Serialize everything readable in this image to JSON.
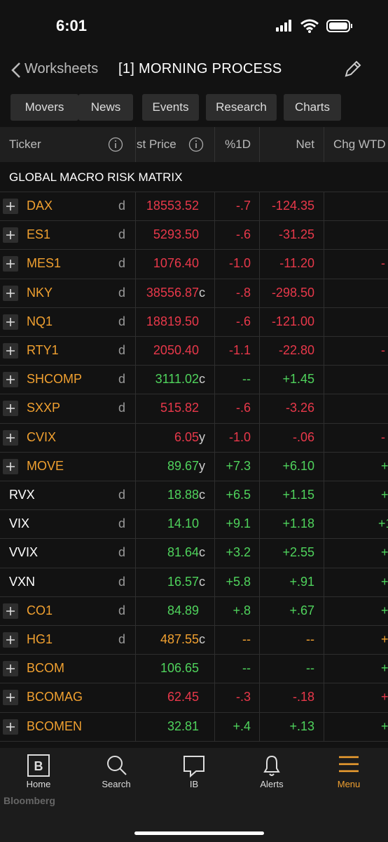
{
  "status_bar": {
    "time": "6:01"
  },
  "header": {
    "back": "Worksheets",
    "title": "[1] MORNING PROCESS"
  },
  "tabs": [
    "Movers",
    "News",
    "Events",
    "Research",
    "Charts"
  ],
  "table": {
    "columns": [
      "Ticker",
      "st Price",
      "%1D",
      "Net",
      "Chg WTD"
    ],
    "section": "GLOBAL MACRO RISK MATRIX",
    "rows": [
      {
        "expand": true,
        "ticker": "DAX",
        "flag": "d",
        "price": "18553.52",
        "suffix": null,
        "pct": "-.7",
        "net": "-124.35",
        "wtd": null,
        "color": "#e8384a"
      },
      {
        "expand": true,
        "ticker": "ES1",
        "flag": "d",
        "price": "5293.50",
        "suffix": null,
        "pct": "-.6",
        "net": "-31.25",
        "wtd": null,
        "color": "#e8384a"
      },
      {
        "expand": true,
        "ticker": "MES1",
        "flag": "d",
        "price": "1076.40",
        "suffix": null,
        "pct": "-1.0",
        "net": "-11.20",
        "wtd": "-",
        "color": "#e8384a"
      },
      {
        "expand": true,
        "ticker": "NKY",
        "flag": "d",
        "price": "38556.87",
        "suffix": "c",
        "pct": "-.8",
        "net": "-298.50",
        "wtd": null,
        "color": "#e8384a"
      },
      {
        "expand": true,
        "ticker": "NQ1",
        "flag": "d",
        "price": "18819.50",
        "suffix": null,
        "pct": "-.6",
        "net": "-121.00",
        "wtd": null,
        "color": "#e8384a"
      },
      {
        "expand": true,
        "ticker": "RTY1",
        "flag": "d",
        "price": "2050.40",
        "suffix": null,
        "pct": "-1.1",
        "net": "-22.80",
        "wtd": "-",
        "color": "#e8384a"
      },
      {
        "expand": true,
        "ticker": "SHCOMP",
        "flag": "d",
        "price": "3111.02",
        "suffix": "c",
        "pct": "--",
        "net": "+1.45",
        "wtd": null,
        "color": "#4fd35c"
      },
      {
        "expand": true,
        "ticker": "SXXP",
        "flag": "d",
        "price": "515.82",
        "suffix": null,
        "pct": "-.6",
        "net": "-3.26",
        "wtd": null,
        "color": "#e8384a"
      },
      {
        "expand": true,
        "ticker": "CVIX",
        "flag": null,
        "price": "6.05",
        "suffix": "y",
        "pct": "-1.0",
        "net": "-.06",
        "wtd": "-",
        "color": "#e8384a"
      },
      {
        "expand": true,
        "ticker": "MOVE",
        "flag": null,
        "price": "89.67",
        "suffix": "y",
        "pct": "+7.3",
        "net": "+6.10",
        "wtd": "+",
        "color": "#4fd35c"
      },
      {
        "expand": false,
        "ticker": "RVX",
        "flag": "d",
        "price": "18.88",
        "suffix": "c",
        "pct": "+6.5",
        "net": "+1.15",
        "wtd": "+",
        "color": "#4fd35c"
      },
      {
        "expand": false,
        "ticker": "VIX",
        "flag": "d",
        "price": "14.10",
        "suffix": null,
        "pct": "+9.1",
        "net": "+1.18",
        "wtd": "+1",
        "color": "#4fd35c"
      },
      {
        "expand": false,
        "ticker": "VVIX",
        "flag": "d",
        "price": "81.64",
        "suffix": "c",
        "pct": "+3.2",
        "net": "+2.55",
        "wtd": "+",
        "color": "#4fd35c"
      },
      {
        "expand": false,
        "ticker": "VXN",
        "flag": "d",
        "price": "16.57",
        "suffix": "c",
        "pct": "+5.8",
        "net": "+.91",
        "wtd": "+",
        "color": "#4fd35c"
      },
      {
        "expand": true,
        "ticker": "CO1",
        "flag": "d",
        "price": "84.89",
        "suffix": null,
        "pct": "+.8",
        "net": "+.67",
        "wtd": "+",
        "color": "#4fd35c"
      },
      {
        "expand": true,
        "ticker": "HG1",
        "flag": "d",
        "price": "487.55",
        "suffix": "c",
        "pct": "--",
        "net": "--",
        "wtd": "+",
        "color": "#f0a030"
      },
      {
        "expand": true,
        "ticker": "BCOM",
        "flag": null,
        "price": "106.65",
        "suffix": null,
        "pct": "--",
        "net": "--",
        "wtd": "+",
        "color": "#4fd35c"
      },
      {
        "expand": true,
        "ticker": "BCOMAG",
        "flag": null,
        "price": "62.45",
        "suffix": null,
        "pct": "-.3",
        "net": "-.18",
        "wtd": "+",
        "color": "#e8384a"
      },
      {
        "expand": true,
        "ticker": "BCOMEN",
        "flag": null,
        "price": "32.81",
        "suffix": null,
        "pct": "+.4",
        "net": "+.13",
        "wtd": "+",
        "color": "#4fd35c"
      }
    ]
  },
  "nav": [
    "Home",
    "Search",
    "IB",
    "Alerts",
    "Menu"
  ],
  "footer": {
    "brand": "Bloomberg"
  }
}
